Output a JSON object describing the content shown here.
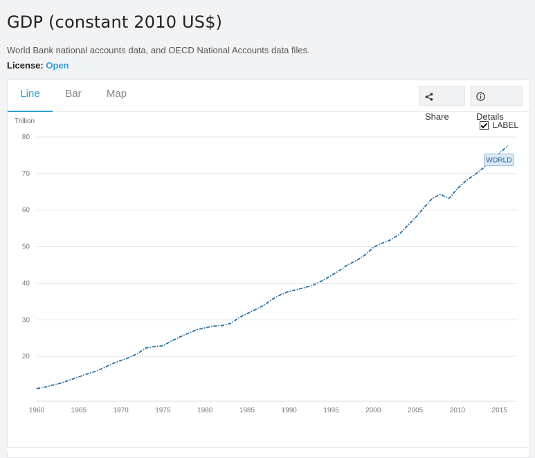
{
  "page": {
    "title": "GDP (constant 2010 US$)",
    "source": "World Bank national accounts data, and OECD National Accounts data files.",
    "license_label": "License:",
    "license_value": "Open"
  },
  "tabs": [
    {
      "label": "Line",
      "active": true
    },
    {
      "label": "Bar",
      "active": false
    },
    {
      "label": "Map",
      "active": false
    }
  ],
  "actions": {
    "share_label": "Share",
    "details_label": "Details"
  },
  "label_toggle": {
    "label": "LABEL",
    "checked": true
  },
  "colors": {
    "line": "#1f6fa3",
    "accent": "#2d9fd9",
    "grid": "#e4e4e4",
    "tag_bg": "#dbeaf6"
  },
  "chart_data": {
    "type": "line",
    "title": "GDP (constant 2010 US$)",
    "ylabel": "Trillion",
    "xlabel": "",
    "xlim": [
      1960,
      2017
    ],
    "ylim": [
      10,
      80
    ],
    "yticks": [
      20,
      30,
      40,
      50,
      60,
      70,
      80
    ],
    "xticks": [
      1960,
      1965,
      1970,
      1975,
      1980,
      1985,
      1990,
      1995,
      2000,
      2005,
      2010,
      2015
    ],
    "grid": "horizontal",
    "series": [
      {
        "name": "WORLD",
        "label": "WORLD",
        "x": [
          1960,
          1961,
          1962,
          1963,
          1964,
          1965,
          1966,
          1967,
          1968,
          1969,
          1970,
          1971,
          1972,
          1973,
          1974,
          1975,
          1976,
          1977,
          1978,
          1979,
          1980,
          1981,
          1982,
          1983,
          1984,
          1985,
          1986,
          1987,
          1988,
          1989,
          1990,
          1991,
          1992,
          1993,
          1994,
          1995,
          1996,
          1997,
          1998,
          1999,
          2000,
          2001,
          2002,
          2003,
          2004,
          2005,
          2006,
          2007,
          2008,
          2009,
          2010,
          2011,
          2012,
          2013,
          2014,
          2015,
          2016
        ],
        "values": [
          11.2,
          11.6,
          12.2,
          12.8,
          13.6,
          14.4,
          15.2,
          15.9,
          16.9,
          18.0,
          18.9,
          19.7,
          20.8,
          22.3,
          22.7,
          22.9,
          24.2,
          25.3,
          26.3,
          27.3,
          27.8,
          28.3,
          28.4,
          29.0,
          30.5,
          31.7,
          32.8,
          34.0,
          35.6,
          36.9,
          37.8,
          38.3,
          38.9,
          39.6,
          40.8,
          42.1,
          43.5,
          45.1,
          46.2,
          47.7,
          49.8,
          50.9,
          51.8,
          53.2,
          55.6,
          57.9,
          60.6,
          63.2,
          64.3,
          63.2,
          65.9,
          68.0,
          69.6,
          71.4,
          73.3,
          75.6,
          77.6
        ]
      }
    ]
  }
}
